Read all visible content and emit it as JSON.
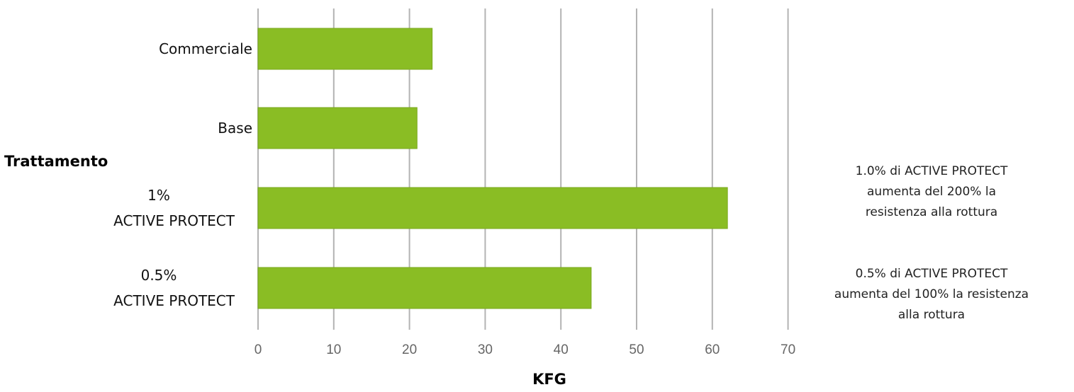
{
  "chart_data": {
    "type": "bar",
    "orientation": "horizontal",
    "categories": [
      [
        "Commerciale"
      ],
      [
        "Base"
      ],
      [
        "1%",
        "ACTIVE PROTECT"
      ],
      [
        "0.5%",
        "ACTIVE PROTECT"
      ]
    ],
    "values": [
      23,
      21,
      62,
      44
    ],
    "xlabel": "KFG",
    "ylabel": "Trattamento",
    "xlim": [
      0,
      70
    ],
    "xticks": [
      0,
      10,
      20,
      30,
      40,
      50,
      60,
      70
    ],
    "grid": true,
    "colors": {
      "bar": "#8abd24",
      "bar_edge": "#7aa81e",
      "grid": "#b3b3b3"
    }
  },
  "annotations": [
    {
      "lines": [
        "1.0% di ACTIVE PROTECT",
        "aumenta del 200% la",
        "resistenza alla rottura"
      ]
    },
    {
      "lines": [
        "0.5% di ACTIVE PROTECT",
        "aumenta del 100% la resistenza",
        "alla rottura"
      ]
    }
  ]
}
